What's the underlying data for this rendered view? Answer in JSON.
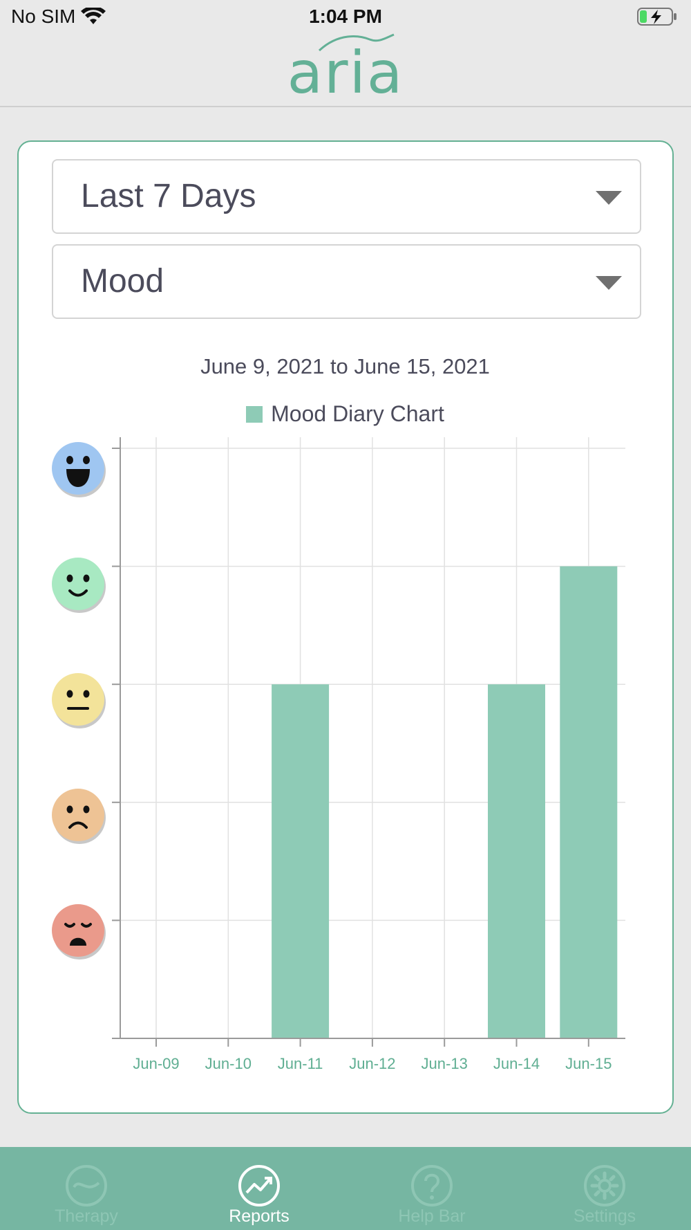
{
  "status_bar": {
    "carrier": "No SIM",
    "time": "1:04 PM"
  },
  "header": {
    "logo_text": "aria"
  },
  "filters": {
    "period": "Last 7 Days",
    "metric": "Mood"
  },
  "colors": {
    "accent": "#64b193",
    "bar": "#8ecbb6",
    "tabbar": "#76b6a2"
  },
  "chart_data": {
    "type": "bar",
    "subtitle": "June 9, 2021 to June 15, 2021",
    "series": [
      {
        "name": "Mood Diary Chart",
        "values": [
          0,
          0,
          3,
          0,
          0,
          3,
          4
        ]
      }
    ],
    "categories": [
      "Jun-09",
      "Jun-10",
      "Jun-11",
      "Jun-12",
      "Jun-13",
      "Jun-14",
      "Jun-15"
    ],
    "ylim": [
      0,
      5
    ],
    "y_tick_icons": [
      "very-sad-face-icon",
      "sad-face-icon",
      "neutral-face-icon",
      "happy-face-icon",
      "very-happy-face-icon"
    ],
    "grid": true,
    "legend": "top-center"
  },
  "tabs": [
    {
      "label": "Therapy",
      "icon": "therapy-wave-icon",
      "active": false
    },
    {
      "label": "Reports",
      "icon": "reports-trend-icon",
      "active": true
    },
    {
      "label": "Help Bar",
      "icon": "help-question-icon",
      "active": false
    },
    {
      "label": "Settings",
      "icon": "settings-gear-icon",
      "active": false
    }
  ]
}
